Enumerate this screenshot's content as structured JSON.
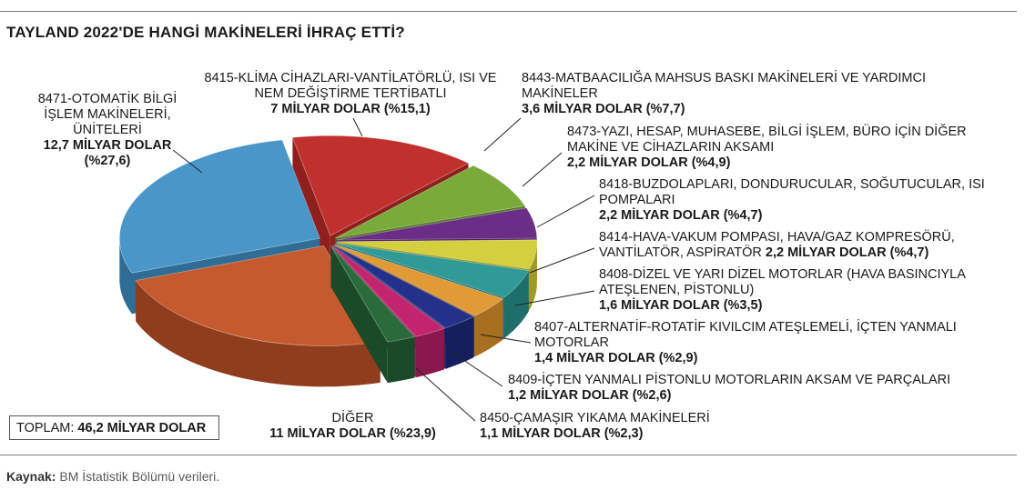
{
  "title": "TAYLAND 2022'DE HANGİ MAKİNELERİ İHRAÇ ETTİ?",
  "total": {
    "label": "TOPLAM:",
    "value": "46,2 MİLYAR DOLAR"
  },
  "source": {
    "label": "Kaynak:",
    "text": "BM İstatistik Bölümü verileri."
  },
  "labels": {
    "s8471": {
      "name1": "8471-OTOMATİK BİLGİ",
      "name2": "İŞLEM MAKİNELERİ,",
      "name3": "ÜNİTELERİ",
      "value1": "12,7 MİLYAR DOLAR",
      "value2": "(%27,6)"
    },
    "s8415": {
      "name1": "8415-KLİMA CİHAZLARI-VANTİLATÖRLÜ, ISI VE",
      "name2": "NEM DEĞİŞTİRME TERTİBATLI",
      "value": "7 MİLYAR DOLAR (%15,1)"
    },
    "s8443": {
      "name1": "8443-MATBAACILIĞA MAHSUS BASKI MAKİNELERİ VE YARDIMCI",
      "name2": "MAKİNELER",
      "value": "3,6 MİLYAR DOLAR (%7,7)"
    },
    "s8473": {
      "name1": "8473-YAZI, HESAP, MUHASEBE, BİLGİ İŞLEM, BÜRO İÇİN DİĞER",
      "name2": "MAKİNE VE CİHAZLARIN AKSAMI",
      "value": "2,2 MİLYAR DOLAR (%4,9)"
    },
    "s8418": {
      "name1": "8418-BUZDOLAPLARI, DONDURUCULAR, SOĞUTUCULAR, ISI",
      "name2": "POMPALARI",
      "value": "2,2 MİLYAR DOLAR (%4,7)"
    },
    "s8414": {
      "name1": "8414-HAVA-VAKUM POMPASI, HAVA/GAZ KOMPRESÖRÜ,",
      "name2": "VANTİLATÖR, ASPİRATÖR",
      "value": "2,2 MİLYAR DOLAR (%4,7)"
    },
    "s8408": {
      "name1": "8408-DİZEL VE YARI DİZEL MOTORLAR (HAVA BASINCIYLA",
      "name2": "ATEŞLENEN, PİSTONLU)",
      "value": "1,6 MİLYAR DOLAR (%3,5)"
    },
    "s8407": {
      "name1": "8407-ALTERNATİF-ROTATİF KIVILCIM ATEŞLEMELİ, İÇTEN YANMALI",
      "name2": "MOTORLAR",
      "value": "1,4 MİLYAR DOLAR (%2,9)"
    },
    "s8409": {
      "name1": "8409-İÇTEN YANMALI PİSTONLU MOTORLARIN AKSAM VE PARÇALARI",
      "value": "1,2 MİLYAR DOLAR (%2,6)"
    },
    "s8450": {
      "name1": "8450-ÇAMAŞIR YIKAMA MAKİNELERİ",
      "value": "1,1 MİLYAR DOLAR (%2,3)"
    },
    "diger": {
      "name1": "DİĞER",
      "value": "11 MİLYAR DOLAR (%23,9)"
    }
  },
  "chart_data": {
    "type": "pie",
    "title": "TAYLAND 2022'DE HANGİ MAKİNELERİ İHRAÇ ETTİ?",
    "unit": "MİLYAR DOLAR",
    "three_d": true,
    "slices": [
      {
        "name": "8415-KLİMA CİHAZLARI-VANTİLATÖRLÜ, ISI VE NEM DEĞİŞTİRME TERTİBATLI",
        "value": 7,
        "percent": 15.1,
        "color": "#c0302c",
        "side": "#8e1f1c"
      },
      {
        "name": "8443-MATBAACILIĞA MAHSUS BASKI MAKİNELERİ VE YARDIMCI MAKİNELER",
        "value": 3.6,
        "percent": 7.7,
        "color": "#7aaa3a",
        "side": "#557826"
      },
      {
        "name": "8473-YAZI, HESAP, MUHASEBE, BİLGİ İŞLEM, BÜRO İÇİN DİĞER MAKİNE VE CİHAZLARIN AKSAMI",
        "value": 2.2,
        "percent": 4.9,
        "color": "#6a2e86",
        "side": "#4a1d60"
      },
      {
        "name": "8418-BUZDOLAPLARI, DONDURUCULAR, SOĞUTUCULAR, ISI POMPALARI",
        "value": 2.2,
        "percent": 4.7,
        "color": "#d4cf3f",
        "side": "#9e9a28"
      },
      {
        "name": "8414-HAVA-VAKUM POMPASI, HAVA/GAZ KOMPRESÖRÜ, VANTİLATÖR, ASPİRATÖR",
        "value": 2.2,
        "percent": 4.7,
        "color": "#2f9a96",
        "side": "#1e6e6b"
      },
      {
        "name": "8408-DİZEL VE YARI DİZEL MOTORLAR (HAVA BASINCIYLA ATEŞLENEN, PİSTONLU)",
        "value": 1.6,
        "percent": 3.5,
        "color": "#e09a36",
        "side": "#a86f20"
      },
      {
        "name": "8407-ALTERNATİF-ROTATİF KIVILCIM ATEŞLEMELİ, İÇTEN YANMALI MOTORLAR",
        "value": 1.4,
        "percent": 2.9,
        "color": "#23318a",
        "side": "#151f5e"
      },
      {
        "name": "8409-İÇTEN YANMALI PİSTONLU MOTORLARIN AKSAM VE PARÇALARI",
        "value": 1.2,
        "percent": 2.6,
        "color": "#c2256e",
        "side": "#8a174d"
      },
      {
        "name": "8450-ÇAMAŞIR YIKAMA MAKİNELERİ",
        "value": 1.1,
        "percent": 2.3,
        "color": "#2a6b3c",
        "side": "#1a4a28"
      },
      {
        "name": "DİĞER",
        "value": 11,
        "percent": 23.9,
        "color": "#c55a2e",
        "side": "#8f3d1c"
      },
      {
        "name": "8471-OTOMATİK BİLGİ İŞLEM MAKİNELERİ, ÜNİTELERİ",
        "value": 12.7,
        "percent": 27.6,
        "color": "#4a96c8",
        "side": "#2f6d96"
      }
    ],
    "total": 46.2
  }
}
